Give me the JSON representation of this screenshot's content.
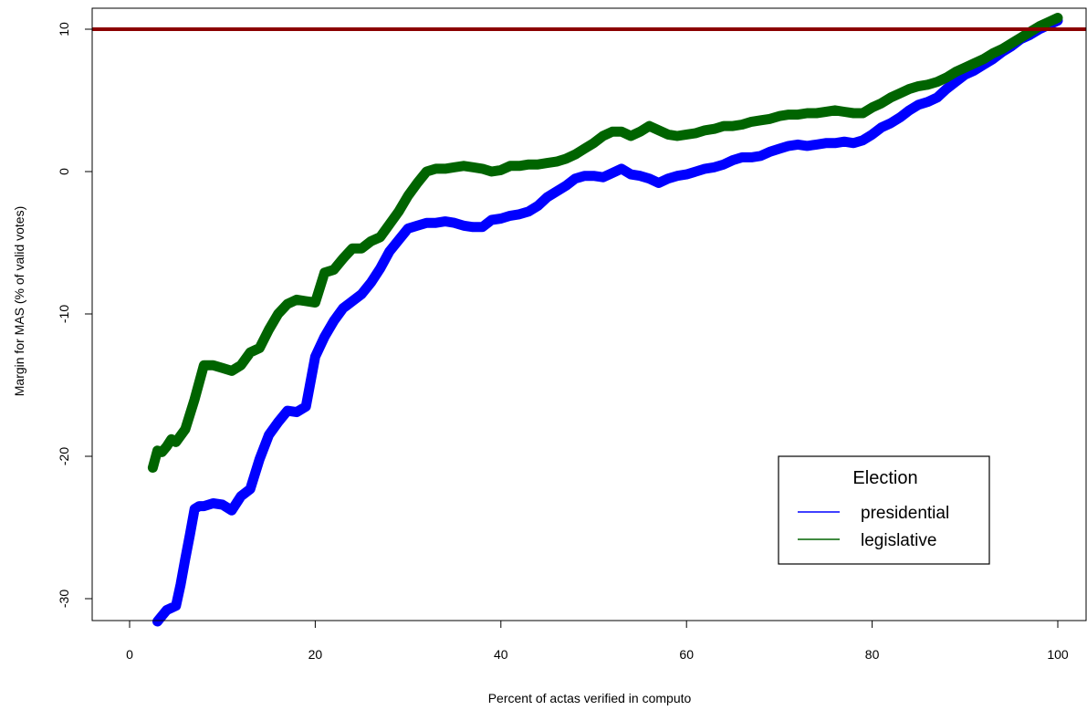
{
  "chart_data": {
    "type": "line",
    "title": "",
    "xlabel": "Percent of actas verified in computo",
    "ylabel": "Margin for MAS (% of valid votes)",
    "xlim": [
      -3,
      103
    ],
    "ylim": [
      -31.6,
      11.5
    ],
    "x_ticks": [
      0,
      20,
      40,
      60,
      80,
      100
    ],
    "y_ticks": [
      -30,
      -20,
      -10,
      0,
      10
    ],
    "grid": false,
    "reference_line": {
      "y": 10,
      "color": "#8b0000"
    },
    "legend": {
      "title": "Election",
      "placement": "bottom-right"
    },
    "series": [
      {
        "name": "presidential",
        "color": "#0000ff",
        "x": [
          3,
          3.5,
          4,
          5,
          5.5,
          6,
          6.5,
          7,
          7.5,
          8,
          9,
          10,
          11,
          12,
          13,
          14,
          15,
          16,
          17,
          18,
          19,
          20,
          21,
          22,
          23,
          24,
          25,
          26,
          27,
          28,
          29,
          30,
          31,
          32,
          33,
          34,
          35,
          36,
          37,
          38,
          39,
          40,
          41,
          42,
          43,
          44,
          45,
          46,
          47,
          48,
          49,
          50,
          51,
          52,
          53,
          54,
          55,
          56,
          57,
          58,
          59,
          60,
          61,
          62,
          63,
          64,
          65,
          66,
          67,
          68,
          69,
          70,
          71,
          72,
          73,
          74,
          75,
          76,
          77,
          78,
          79,
          80,
          81,
          82,
          83,
          84,
          85,
          86,
          87,
          88,
          89,
          90,
          91,
          92,
          93,
          94,
          95,
          96,
          97,
          98,
          99,
          100
        ],
        "values": [
          -31.6,
          -31.2,
          -30.8,
          -30.5,
          -29,
          -27.2,
          -25.5,
          -23.7,
          -23.5,
          -23.5,
          -23.3,
          -23.4,
          -23.8,
          -22.8,
          -22.3,
          -20.2,
          -18.5,
          -17.6,
          -16.8,
          -16.9,
          -16.5,
          -13,
          -11.6,
          -10.5,
          -9.6,
          -9.1,
          -8.6,
          -7.8,
          -6.8,
          -5.6,
          -4.8,
          -4,
          -3.8,
          -3.6,
          -3.6,
          -3.5,
          -3.6,
          -3.8,
          -3.9,
          -3.9,
          -3.4,
          -3.3,
          -3.1,
          -3,
          -2.8,
          -2.4,
          -1.8,
          -1.4,
          -1,
          -0.5,
          -0.3,
          -0.3,
          -0.4,
          -0.1,
          0.2,
          -0.2,
          -0.3,
          -0.5,
          -0.8,
          -0.5,
          -0.3,
          -0.2,
          0,
          0.2,
          0.3,
          0.5,
          0.8,
          1,
          1,
          1.1,
          1.4,
          1.6,
          1.8,
          1.9,
          1.8,
          1.9,
          2,
          2,
          2.1,
          2,
          2.2,
          2.6,
          3.1,
          3.4,
          3.8,
          4.3,
          4.7,
          4.9,
          5.2,
          5.8,
          6.3,
          6.8,
          7.1,
          7.5,
          7.9,
          8.4,
          8.8,
          9.3,
          9.6,
          10,
          10.3,
          10.6
        ]
      },
      {
        "name": "legislative",
        "color": "#006400",
        "x": [
          2.5,
          3,
          3.5,
          4,
          4.5,
          5,
          6,
          7,
          8,
          9,
          10,
          11,
          12,
          13,
          14,
          15,
          16,
          17,
          18,
          19,
          20,
          21,
          22,
          23,
          24,
          25,
          26,
          27,
          28,
          29,
          30,
          31,
          32,
          33,
          34,
          35,
          36,
          37,
          38,
          39,
          40,
          41,
          42,
          43,
          44,
          45,
          46,
          47,
          48,
          49,
          50,
          51,
          52,
          53,
          54,
          55,
          56,
          57,
          58,
          59,
          60,
          61,
          62,
          63,
          64,
          65,
          66,
          67,
          68,
          69,
          70,
          71,
          72,
          73,
          74,
          75,
          76,
          77,
          78,
          79,
          80,
          81,
          82,
          83,
          84,
          85,
          86,
          87,
          88,
          89,
          90,
          91,
          92,
          93,
          94,
          95,
          96,
          97,
          98,
          99,
          100
        ],
        "values": [
          -20.8,
          -19.6,
          -19.7,
          -19.3,
          -18.8,
          -19,
          -18.1,
          -16,
          -13.6,
          -13.6,
          -13.8,
          -14,
          -13.6,
          -12.7,
          -12.4,
          -11.1,
          -10,
          -9.3,
          -9,
          -9.1,
          -9.2,
          -7.1,
          -6.9,
          -6.1,
          -5.4,
          -5.4,
          -4.9,
          -4.6,
          -3.7,
          -2.8,
          -1.7,
          -0.8,
          0,
          0.2,
          0.2,
          0.3,
          0.4,
          0.3,
          0.2,
          0,
          0.1,
          0.4,
          0.4,
          0.5,
          0.5,
          0.6,
          0.7,
          0.9,
          1.2,
          1.6,
          2,
          2.5,
          2.8,
          2.8,
          2.5,
          2.8,
          3.2,
          2.9,
          2.6,
          2.5,
          2.6,
          2.7,
          2.9,
          3,
          3.2,
          3.2,
          3.3,
          3.5,
          3.6,
          3.7,
          3.9,
          4,
          4,
          4.1,
          4.1,
          4.2,
          4.3,
          4.2,
          4.1,
          4.1,
          4.5,
          4.8,
          5.2,
          5.5,
          5.8,
          6,
          6.1,
          6.3,
          6.6,
          7,
          7.3,
          7.6,
          7.9,
          8.3,
          8.6,
          9,
          9.4,
          9.8,
          10.2,
          10.5,
          10.8
        ]
      }
    ]
  }
}
